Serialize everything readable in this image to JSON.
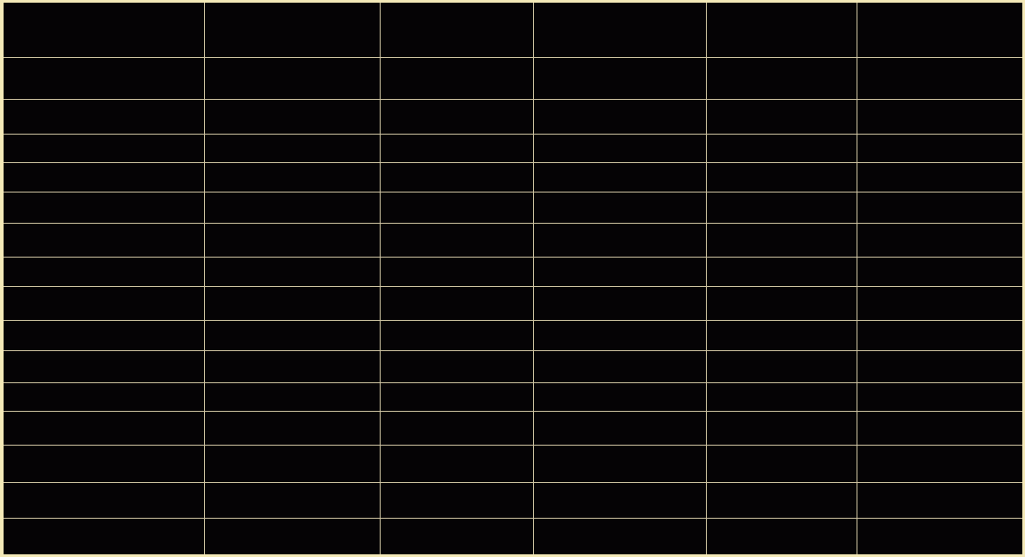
{
  "grid": {
    "background_color": "#050305",
    "line_color": "#cfc4a2",
    "frame_color": "#f4e9b8",
    "row_count": 16,
    "column_count": 6,
    "rows": [
      [
        "",
        "",
        "",
        "",
        "",
        ""
      ],
      [
        "",
        "",
        "",
        "",
        "",
        ""
      ],
      [
        "",
        "",
        "",
        "",
        "",
        ""
      ],
      [
        "",
        "",
        "",
        "",
        "",
        ""
      ],
      [
        "",
        "",
        "",
        "",
        "",
        ""
      ],
      [
        "",
        "",
        "",
        "",
        "",
        ""
      ],
      [
        "",
        "",
        "",
        "",
        "",
        ""
      ],
      [
        "",
        "",
        "",
        "",
        "",
        ""
      ],
      [
        "",
        "",
        "",
        "",
        "",
        ""
      ],
      [
        "",
        "",
        "",
        "",
        "",
        ""
      ],
      [
        "",
        "",
        "",
        "",
        "",
        ""
      ],
      [
        "",
        "",
        "",
        "",
        "",
        ""
      ],
      [
        "",
        "",
        "",
        "",
        "",
        ""
      ],
      [
        "",
        "",
        "",
        "",
        "",
        ""
      ],
      [
        "",
        "",
        "",
        "",
        "",
        ""
      ],
      [
        "",
        "",
        "",
        "",
        "",
        ""
      ]
    ]
  }
}
